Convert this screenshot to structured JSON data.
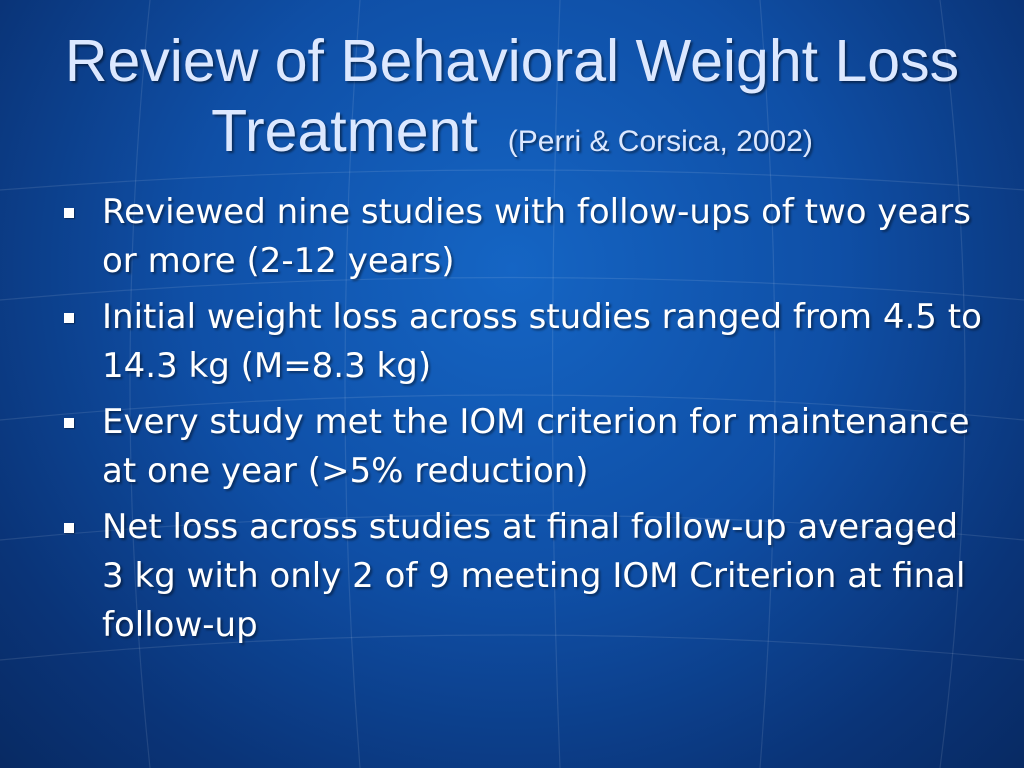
{
  "slide": {
    "title_main": "Review of Behavioral Weight Loss Treatment",
    "title_citation": "(Perri & Corsica, 2002)",
    "bullets": [
      "Reviewed nine studies with follow-ups of two years or more  (2-12 years)",
      "Initial weight loss  across studies ranged from 4.5 to 14.3 kg (M=8.3 kg)",
      "Every study met the IOM criterion for maintenance at one year (>5% reduction)",
      "Net loss across studies at final follow-up averaged 3 kg with only 2 of 9 meeting IOM Criterion at final follow-up"
    ]
  },
  "colors": {
    "background": "#0f4fa6",
    "title_text": "#dce8ff",
    "body_text": "#ffffff"
  },
  "icons": {
    "bullet": "square-bullet-icon"
  }
}
